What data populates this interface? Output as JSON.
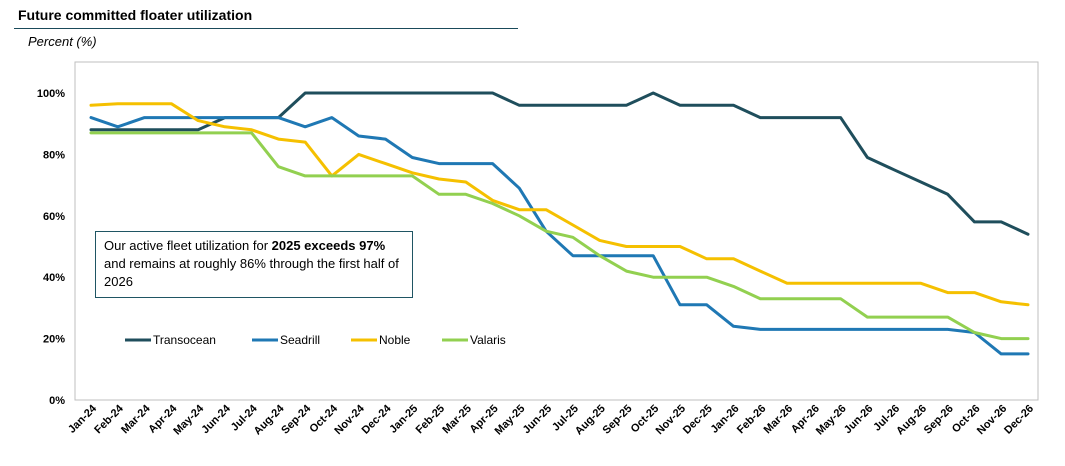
{
  "header": {
    "title": "Future committed floater utilization",
    "units": "Percent (%)"
  },
  "callout": {
    "part1": "Our active fleet utilization for ",
    "bold": "2025 exceeds 97%",
    "part2": " and remains at roughly 86% through the first half of 2026"
  },
  "chart_data": {
    "type": "line",
    "title": "Future committed floater utilization",
    "ylabel": "Percent (%)",
    "ylim": [
      0,
      100
    ],
    "yticks": [
      "0%",
      "20%",
      "40%",
      "60%",
      "80%",
      "100%"
    ],
    "grid": false,
    "legend_position": "bottom-left",
    "categories": [
      "Jan-24",
      "Feb-24",
      "Mar-24",
      "Apr-24",
      "May-24",
      "Jun-24",
      "Jul-24",
      "Aug-24",
      "Sep-24",
      "Oct-24",
      "Nov-24",
      "Dec-24",
      "Jan-25",
      "Feb-25",
      "Mar-25",
      "Apr-25",
      "May-25",
      "Jun-25",
      "Jul-25",
      "Aug-25",
      "Sep-25",
      "Oct-25",
      "Nov-25",
      "Dec-25",
      "Jan-26",
      "Feb-26",
      "Mar-26",
      "Apr-26",
      "May-26",
      "Jun-26",
      "Jul-26",
      "Aug-26",
      "Sep-26",
      "Oct-26",
      "Nov-26",
      "Dec-26"
    ],
    "series": [
      {
        "name": "Transocean",
        "color": "#1f4e5c",
        "values": [
          88,
          88,
          88,
          88,
          88,
          92,
          92,
          92,
          100,
          100,
          100,
          100,
          100,
          100,
          100,
          100,
          96,
          96,
          96,
          96,
          96,
          100,
          96,
          96,
          96,
          92,
          92,
          92,
          92,
          79,
          75,
          71,
          67,
          58,
          58,
          54
        ]
      },
      {
        "name": "Seadrill",
        "color": "#1f78b4",
        "values": [
          92,
          89,
          92,
          92,
          92,
          92,
          92,
          92,
          89,
          92,
          86,
          85,
          79,
          77,
          77,
          77,
          69,
          55,
          47,
          47,
          47,
          47,
          31,
          31,
          24,
          23,
          23,
          23,
          23,
          23,
          23,
          23,
          23,
          22,
          15,
          15
        ]
      },
      {
        "name": "Noble",
        "color": "#f5c000",
        "values": [
          96,
          96.5,
          96.5,
          96.5,
          91,
          89,
          88,
          85,
          84,
          73,
          80,
          77,
          74,
          72,
          71,
          65,
          62,
          62,
          57,
          52,
          50,
          50,
          50,
          46,
          46,
          42,
          38,
          38,
          38,
          38,
          38,
          38,
          35,
          35,
          32,
          31
        ]
      },
      {
        "name": "Valaris",
        "color": "#92d050",
        "values": [
          87,
          87,
          87,
          87,
          87,
          87,
          87,
          76,
          73,
          73,
          73,
          73,
          73,
          67,
          67,
          64,
          60,
          55,
          53,
          47,
          42,
          40,
          40,
          40,
          37,
          33,
          33,
          33,
          33,
          27,
          27,
          27,
          27,
          22,
          20,
          20
        ]
      }
    ]
  }
}
